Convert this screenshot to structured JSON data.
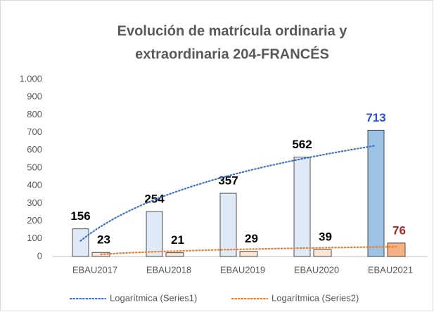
{
  "chart_data": {
    "type": "bar",
    "title": [
      "Evolución de matrícula ordinaria y",
      "extraordinaria 204-FRANCÉS"
    ],
    "categories": [
      "EBAU2017",
      "EBAU2018",
      "EBAU2019",
      "EBAU2020",
      "EBAU2021"
    ],
    "series": [
      {
        "values": [
          156,
          254,
          357,
          562,
          713
        ],
        "colors": [
          "#deebf7",
          "#deebf7",
          "#deebf7",
          "#deebf7",
          "#9dc3e6"
        ],
        "label_colors": [
          "#000000",
          "#000000",
          "#000000",
          "#000000",
          "#2f4fd8"
        ]
      },
      {
        "values": [
          23,
          21,
          29,
          39,
          76
        ],
        "colors": [
          "#fbe5d6",
          "#fbe5d6",
          "#fbe5d6",
          "#fbe5d6",
          "#f4b183"
        ],
        "label_colors": [
          "#000000",
          "#000000",
          "#000000",
          "#000000",
          "#a3282a"
        ]
      }
    ],
    "trendlines": [
      {
        "name": "Logarítmica (Series1)",
        "color": "#4472c4",
        "series": 0
      },
      {
        "name": "Logarítmica (Series2)",
        "color": "#ed7d31",
        "series": 1
      }
    ],
    "ylim": [
      0,
      1000
    ],
    "yticks": [
      0,
      100,
      200,
      300,
      400,
      500,
      600,
      700,
      800,
      900,
      {
        "value": 1000,
        "label": "1.000"
      }
    ],
    "grid": false,
    "legend": "bottom"
  }
}
